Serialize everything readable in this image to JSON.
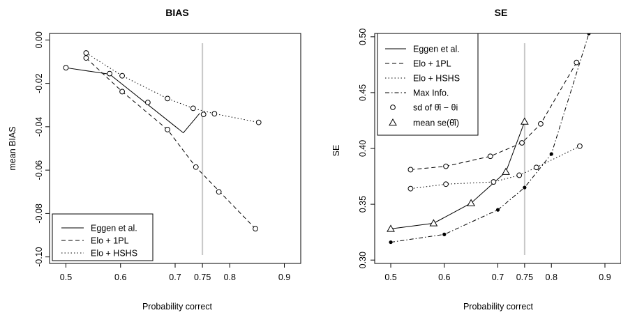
{
  "chart_data": [
    {
      "type": "line",
      "title": "BIAS",
      "xlabel": "Probability correct",
      "ylabel": "mean BIAS",
      "xlim": [
        0.47,
        0.93
      ],
      "ylim": [
        -0.103,
        0.003
      ],
      "x_ticks": [
        0.5,
        0.6,
        0.7,
        0.75,
        0.8,
        0.9
      ],
      "x_tick_labels": [
        "0.5",
        "0.6",
        "0.7",
        "0.75",
        "0.8",
        "0.9"
      ],
      "y_ticks": [
        0.0,
        -0.02,
        -0.04,
        -0.06,
        -0.08,
        -0.1
      ],
      "y_tick_labels": [
        "0.00",
        "-0.02",
        "-0.04",
        "-0.06",
        "-0.08",
        "-0.10"
      ],
      "reference_line_x": 0.75,
      "legend_position": "bottom-left",
      "series": [
        {
          "name": "Eggen et al.",
          "line": "solid",
          "marker": "none",
          "x": [
            0.5,
            0.58,
            0.715,
            0.745
          ],
          "y": [
            -0.0128,
            -0.0158,
            -0.0428,
            -0.0338
          ]
        },
        {
          "name": "Elo + 1PL",
          "line": "dashed",
          "marker": "circle",
          "x": [
            0.537,
            0.603,
            0.686,
            0.738,
            0.847
          ],
          "y": [
            -0.0083,
            -0.0238,
            -0.0413,
            -0.0586,
            -0.087
          ]
        },
        {
          "name": "Elo + HSHS",
          "line": "dotted",
          "marker": "circle",
          "x": [
            0.537,
            0.603,
            0.686,
            0.733,
            0.772,
            0.853
          ],
          "y": [
            -0.006,
            -0.0165,
            -0.027,
            -0.0315,
            -0.034,
            -0.038
          ]
        },
        {
          "name": "",
          "line": "none",
          "marker": "circle",
          "x": [
            0.5,
            0.58,
            0.65,
            0.752,
            0.78
          ],
          "y": [
            -0.0128,
            -0.0155,
            -0.0288,
            -0.0343,
            -0.07
          ]
        }
      ]
    },
    {
      "type": "line",
      "title": "SE",
      "xlabel": "Probability correct",
      "ylabel": "SE",
      "xlim": [
        0.47,
        0.93
      ],
      "ylim": [
        0.297,
        0.503
      ],
      "x_ticks": [
        0.5,
        0.6,
        0.7,
        0.75,
        0.8,
        0.9
      ],
      "x_tick_labels": [
        "0.5",
        "0.6",
        "0.7",
        "0.75",
        "0.8",
        "0.9"
      ],
      "y_ticks": [
        0.3,
        0.35,
        0.4,
        0.45,
        0.5
      ],
      "y_tick_labels": [
        "0.30",
        "0.35",
        "0.40",
        "0.45",
        "0.50"
      ],
      "reference_line_x": 0.75,
      "legend_position": "top-left",
      "series": [
        {
          "name": "Eggen et al.",
          "line": "solid",
          "marker": "triangle",
          "x": [
            0.5,
            0.58,
            0.65,
            0.715,
            0.75
          ],
          "y": [
            0.328,
            0.333,
            0.351,
            0.379,
            0.424
          ]
        },
        {
          "name": "Elo + 1PL",
          "line": "dashed",
          "marker": "circle",
          "x": [
            0.537,
            0.603,
            0.686,
            0.745,
            0.78,
            0.847
          ],
          "y": [
            0.381,
            0.384,
            0.393,
            0.405,
            0.422,
            0.477
          ]
        },
        {
          "name": "Elo + HSHS",
          "line": "dotted",
          "marker": "circle",
          "x": [
            0.537,
            0.603,
            0.692,
            0.74,
            0.772,
            0.853
          ],
          "y": [
            0.364,
            0.368,
            0.37,
            0.376,
            0.383,
            0.402
          ]
        },
        {
          "name": "Max Info.",
          "line": "dotdash",
          "marker": "filled-dot",
          "x": [
            0.5,
            0.6,
            0.7,
            0.75,
            0.8,
            0.87
          ],
          "y": [
            0.316,
            0.323,
            0.345,
            0.365,
            0.395,
            0.503
          ]
        }
      ],
      "legend_extra": [
        {
          "name": "sd of θ̂i − θi",
          "marker": "circle"
        },
        {
          "name": "mean se(θ̂i)",
          "marker": "triangle"
        }
      ]
    }
  ]
}
